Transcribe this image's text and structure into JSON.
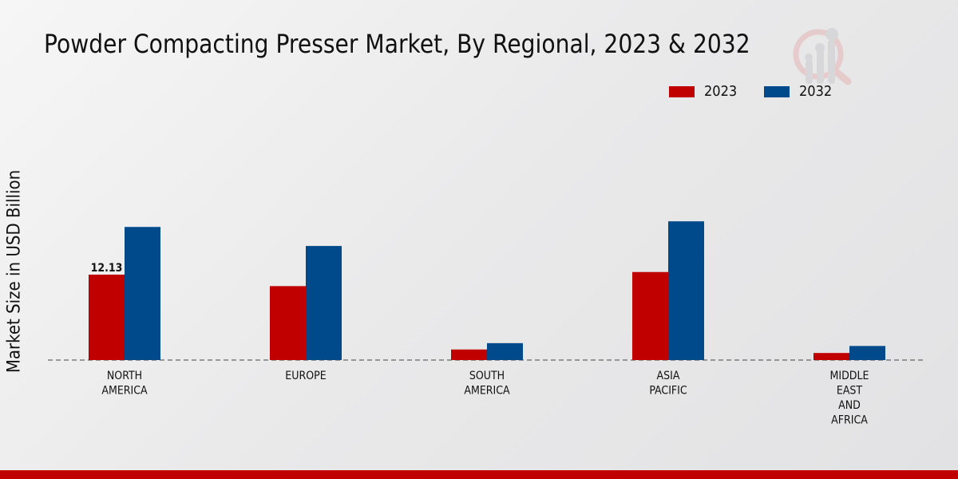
{
  "chart_data": {
    "type": "bar",
    "title": "Powder Compacting Presser Market, By Regional, 2023 & 2032",
    "ylabel": "Market Size in USD Billion",
    "xlabel": "",
    "categories": [
      "NORTH\nAMERICA",
      "EUROPE",
      "SOUTH\nAMERICA",
      "ASIA\nPACIFIC",
      "MIDDLE\nEAST\nAND\nAFRICA"
    ],
    "series": [
      {
        "name": "2023",
        "color": "#c00000",
        "values": [
          12.13,
          10.5,
          1.5,
          12.5,
          1.0
        ]
      },
      {
        "name": "2032",
        "color": "#004a8c",
        "values": [
          18.9,
          16.2,
          2.4,
          19.7,
          2.0
        ]
      }
    ],
    "data_labels": [
      {
        "series": "2023",
        "category_index": 0,
        "text": "12.13"
      }
    ],
    "ylim": [
      0,
      32
    ],
    "grid": false,
    "legend_placement": "top-right"
  }
}
